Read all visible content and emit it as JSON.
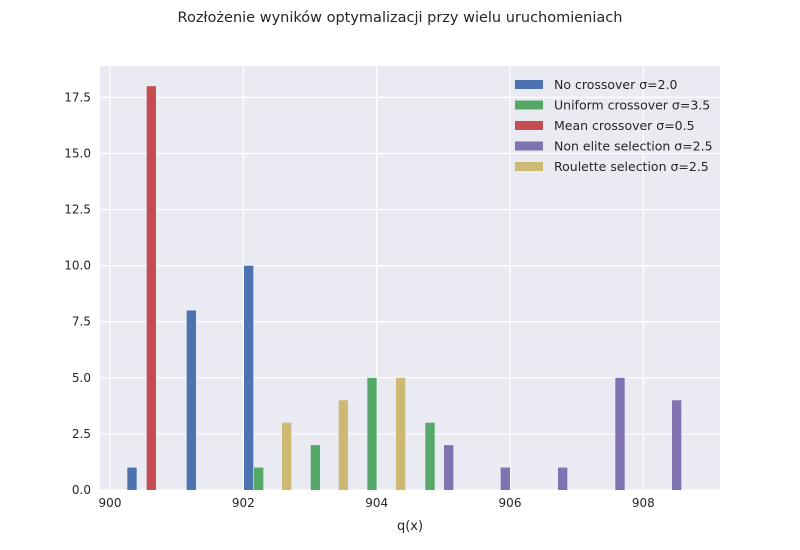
{
  "chart_data": {
    "type": "bar",
    "title": "Rozłożenie wyników optymalizacji przy wielu uruchomieniach",
    "xlabel": "q(x)",
    "ylabel": "",
    "xlim": [
      899.85,
      909.15
    ],
    "ylim": [
      0,
      18.9
    ],
    "xticks": [
      900,
      902,
      904,
      906,
      908
    ],
    "yticks": [
      0.0,
      2.5,
      5.0,
      7.5,
      10.0,
      12.5,
      15.0,
      17.5
    ],
    "grid": true,
    "legend_position": "top-right",
    "bar_width": 0.14,
    "series": [
      {
        "name": "No crossover σ=2.0",
        "color": "#4c72b0",
        "points": [
          {
            "x": 900.33,
            "y": 1
          },
          {
            "x": 901.22,
            "y": 8
          },
          {
            "x": 902.08,
            "y": 10
          }
        ]
      },
      {
        "name": "Uniform crossover σ=3.5",
        "color": "#55a868",
        "points": [
          {
            "x": 902.23,
            "y": 1
          },
          {
            "x": 903.08,
            "y": 2
          },
          {
            "x": 903.93,
            "y": 5
          },
          {
            "x": 904.8,
            "y": 3
          }
        ]
      },
      {
        "name": "Mean crossover σ=0.5",
        "color": "#c44e52",
        "points": [
          {
            "x": 900.62,
            "y": 18
          }
        ]
      },
      {
        "name": "Non elite selection σ=2.5",
        "color": "#8172b2",
        "points": [
          {
            "x": 905.08,
            "y": 2
          },
          {
            "x": 905.93,
            "y": 1
          },
          {
            "x": 906.79,
            "y": 1
          },
          {
            "x": 907.65,
            "y": 5
          },
          {
            "x": 908.5,
            "y": 4
          }
        ]
      },
      {
        "name": "Roulette selection σ=2.5",
        "color": "#ccb974",
        "points": [
          {
            "x": 902.65,
            "y": 3
          },
          {
            "x": 903.5,
            "y": 4
          },
          {
            "x": 904.36,
            "y": 5
          }
        ]
      }
    ]
  }
}
